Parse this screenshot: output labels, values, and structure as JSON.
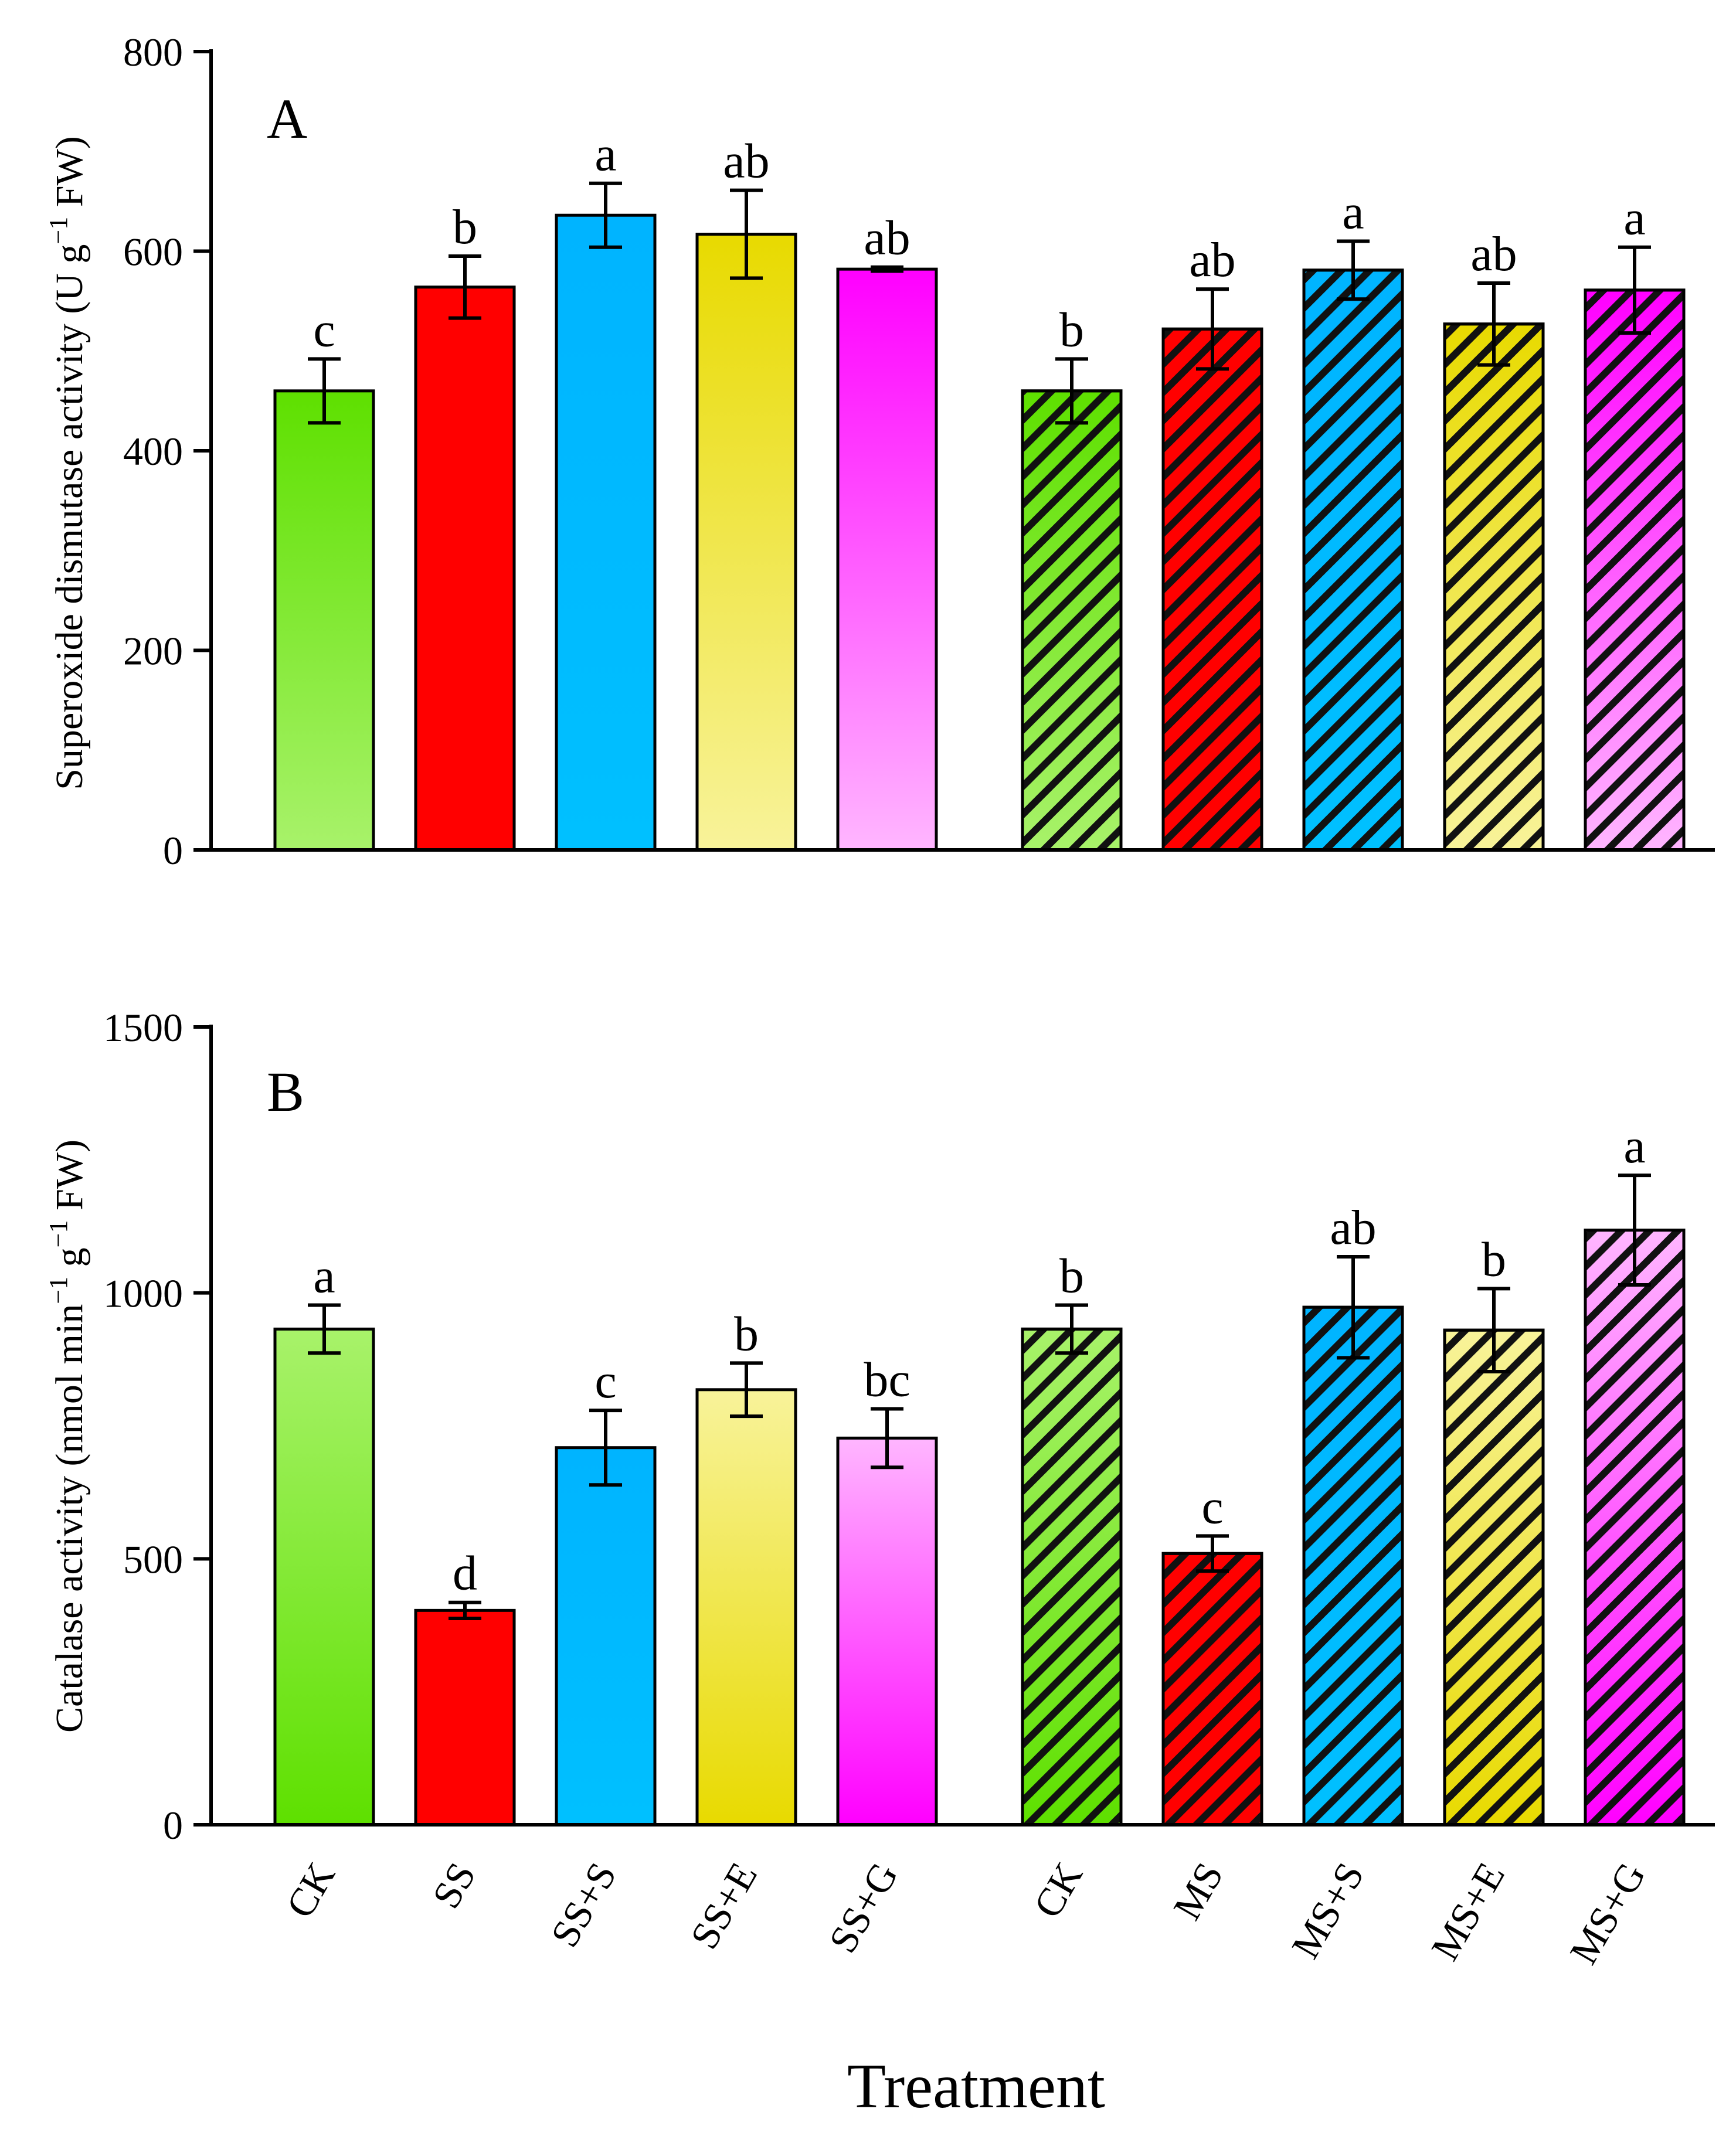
{
  "chart_data": [
    {
      "type": "bar",
      "panel": "A",
      "ylabel": "Superoxide dismutase activity (U g",
      "ylabel_sup": "−1",
      "ylabel_tail": " FW)",
      "ylim": [
        0,
        800
      ],
      "yticks": [
        0,
        200,
        400,
        600,
        800
      ],
      "yticklabels": [
        "0",
        "200",
        "400",
        "600",
        "800"
      ],
      "categories": [
        "CK",
        "SS",
        "SS+S",
        "SS+E",
        "SS+G",
        "CK",
        "MS",
        "MS+S",
        "MS+E",
        "MS+G"
      ],
      "values": [
        460,
        564,
        636,
        617,
        582,
        460,
        522,
        581,
        527,
        561
      ],
      "errors": [
        32,
        31,
        32,
        44,
        2,
        32,
        40,
        29,
        41,
        43
      ],
      "significance": [
        "c",
        "b",
        "a",
        "ab",
        "ab",
        "b",
        "ab",
        "a",
        "ab",
        "a"
      ]
    },
    {
      "type": "bar",
      "panel": "B",
      "ylabel": "Catalase activity (nmol min",
      "ylabel_sup1": "−1",
      "ylabel_mid": " g",
      "ylabel_sup2": "−1",
      "ylabel_tail": " FW)",
      "ylim": [
        0,
        1500
      ],
      "yticks": [
        0,
        500,
        1000,
        1500
      ],
      "yticklabels": [
        "0",
        "500",
        "1000",
        "1500"
      ],
      "categories": [
        "CK",
        "SS",
        "SS+S",
        "SS+E",
        "SS+G",
        "CK",
        "MS",
        "MS+S",
        "MS+E",
        "MS+G"
      ],
      "values": [
        932,
        403,
        709,
        818,
        727,
        932,
        510,
        973,
        930,
        1118
      ],
      "errors": [
        45,
        15,
        70,
        50,
        55,
        45,
        33,
        95,
        78,
        103
      ],
      "significance": [
        "a",
        "d",
        "c",
        "b",
        "bc",
        "b",
        "c",
        "ab",
        "b",
        "a"
      ]
    }
  ],
  "x_axis_title": "Treatment",
  "colors": {
    "green_top": "#5ee000",
    "green_bottom": "#a8f26a",
    "red": "#ff0000",
    "blue": "#00b4ff",
    "yellow_top": "#e8da00",
    "yellow_bottom": "#f8f39a",
    "magenta_top": "#ff00ff",
    "magenta_bottom": "#ffb6ff",
    "hatch": "#111111"
  }
}
